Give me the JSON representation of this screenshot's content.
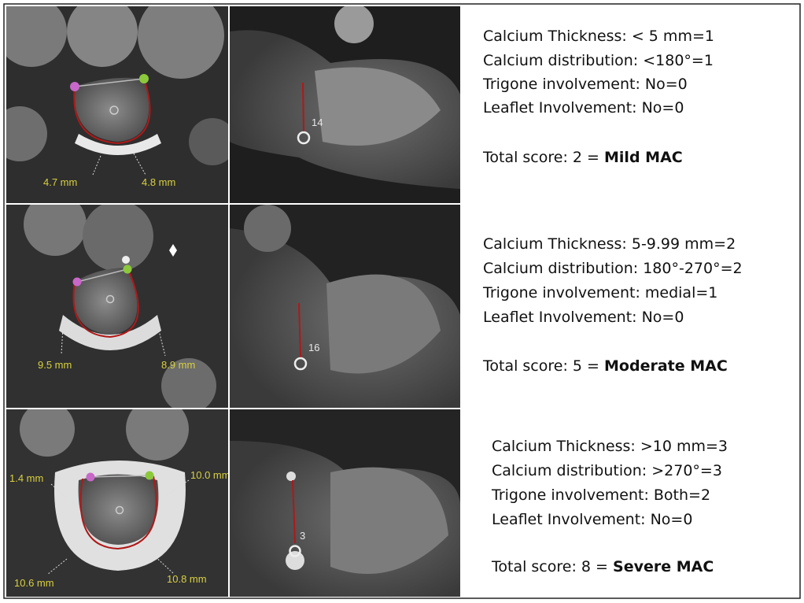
{
  "rows": [
    {
      "image_labels": [
        "4.7 mm",
        "4.8 mm",
        "14"
      ],
      "score_lines": [
        "Calcium Thickness: < 5 mm=1",
        "Calcium distribution: <180°=1",
        "Trigone involvement: No=0",
        "Leaflet Involvement: No=0"
      ],
      "total": "Total score: 2 =",
      "grade": "Mild MAC"
    },
    {
      "image_labels": [
        "9.5 mm",
        "8.9 mm",
        "16"
      ],
      "score_lines": [
        "Calcium Thickness: 5-9.99 mm=2",
        "Calcium distribution: 180°-270°=2",
        "Trigone involvement: medial=1",
        "Leaflet Involvement: No=0"
      ],
      "total": "Total score: 5 =",
      "grade": "Moderate MAC"
    },
    {
      "image_labels": [
        "1.4 mm",
        "10.0 mm",
        "10.6 mm",
        "10.8 mm",
        "3"
      ],
      "score_lines": [
        "Calcium Thickness: >10 mm=3",
        "Calcium distribution: >270°=3",
        "Trigone involvement: Both=2",
        "Leaflet Involvement: No=0"
      ],
      "total": "Total score: 8 =",
      "grade": "Severe MAC"
    }
  ]
}
